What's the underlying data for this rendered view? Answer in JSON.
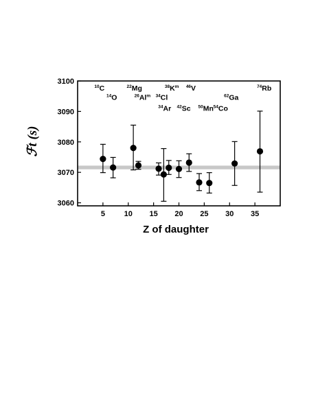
{
  "chart_data": {
    "type": "scatter",
    "xlabel": "Z of daughter",
    "ylabel": "ℱt (s)",
    "xlim": [
      0,
      40
    ],
    "ylim": [
      3059,
      3100
    ],
    "xticks": [
      5,
      10,
      15,
      20,
      25,
      30,
      35
    ],
    "yticks": [
      3060,
      3070,
      3080,
      3090,
      3100
    ],
    "grid": false,
    "average_band": {
      "low": 3071.0,
      "high": 3072.2,
      "color": "#c8c8c8"
    },
    "points": [
      {
        "x": 5,
        "y": 3074.4,
        "err_low": 3069.9,
        "err_high": 3079.2
      },
      {
        "x": 7,
        "y": 3071.6,
        "err_low": 3068.2,
        "err_high": 3074.9
      },
      {
        "x": 11,
        "y": 3078.0,
        "err_low": 3070.8,
        "err_high": 3085.5
      },
      {
        "x": 12,
        "y": 3072.3,
        "err_low": 3071.0,
        "err_high": 3073.6
      },
      {
        "x": 16,
        "y": 3071.2,
        "err_low": 3069.1,
        "err_high": 3073.1
      },
      {
        "x": 17,
        "y": 3069.3,
        "err_low": 3060.5,
        "err_high": 3077.8
      },
      {
        "x": 18,
        "y": 3071.5,
        "err_low": 3069.3,
        "err_high": 3073.9
      },
      {
        "x": 20,
        "y": 3071.1,
        "err_low": 3068.3,
        "err_high": 3073.8
      },
      {
        "x": 22,
        "y": 3073.2,
        "err_low": 3070.3,
        "err_high": 3076.1
      },
      {
        "x": 24,
        "y": 3066.7,
        "err_low": 3064.0,
        "err_high": 3069.6
      },
      {
        "x": 26,
        "y": 3066.5,
        "err_low": 3063.2,
        "err_high": 3069.9
      },
      {
        "x": 31,
        "y": 3072.9,
        "err_low": 3065.7,
        "err_high": 3080.1
      },
      {
        "x": 36,
        "y": 3076.9,
        "err_low": 3063.5,
        "err_high": 3090.1
      }
    ],
    "annotations": [
      {
        "mass": "10",
        "element": "C",
        "x": 3.3,
        "y": 3096.8
      },
      {
        "mass": "14",
        "element": "O",
        "x": 5.7,
        "y": 3093.8
      },
      {
        "mass": "22",
        "element": "Mg",
        "x": 9.7,
        "y": 3096.8
      },
      {
        "mass": "26",
        "element": "Al",
        "x": 11.2,
        "y": 3093.8,
        "suffix": "m"
      },
      {
        "mass": "34",
        "element": "Cl",
        "x": 15.4,
        "y": 3093.8
      },
      {
        "mass": "38",
        "element": "K",
        "x": 17.2,
        "y": 3096.8,
        "suffix": "m"
      },
      {
        "mass": "46",
        "element": "V",
        "x": 21.4,
        "y": 3096.8
      },
      {
        "mass": "34",
        "element": "Ar",
        "x": 15.9,
        "y": 3090.2
      },
      {
        "mass": "42",
        "element": "Sc",
        "x": 19.6,
        "y": 3090.2
      },
      {
        "mass": "50",
        "element": "Mn",
        "x": 23.8,
        "y": 3090.2
      },
      {
        "mass": "54",
        "element": "Co",
        "x": 26.8,
        "y": 3090.2
      },
      {
        "mass": "62",
        "element": "Ga",
        "x": 28.9,
        "y": 3093.8
      },
      {
        "mass": "74",
        "element": "Rb",
        "x": 35.4,
        "y": 3096.8
      }
    ]
  }
}
